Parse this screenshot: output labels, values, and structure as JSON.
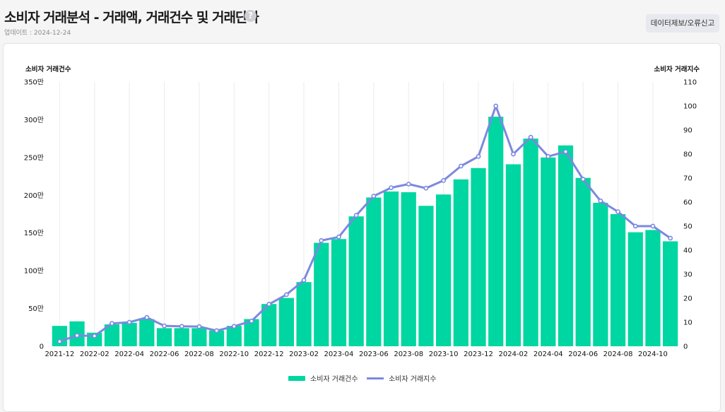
{
  "header": {
    "title": "소비자 거래분석 - 거래액, 거래건수 및 거래단가",
    "help_icon": "question-circle-icon",
    "update_text": "업데이트 : 2024-12-24",
    "report_button_label": "데이터제보/오류신고"
  },
  "colors": {
    "bar": "#00d6a1",
    "line": "#7b89e0",
    "grid": "#ececec"
  },
  "chart_data": {
    "type": "bar",
    "categories": [
      "2021-12",
      "2022-01",
      "2022-02",
      "2022-03",
      "2022-04",
      "2022-05",
      "2022-06",
      "2022-07",
      "2022-08",
      "2022-09",
      "2022-10",
      "2022-11",
      "2022-12",
      "2023-01",
      "2023-02",
      "2023-03",
      "2023-04",
      "2023-05",
      "2023-06",
      "2023-07",
      "2023-08",
      "2023-09",
      "2023-10",
      "2023-11",
      "2023-12",
      "2024-01",
      "2024-02",
      "2024-03",
      "2024-04",
      "2024-05",
      "2024-06",
      "2024-07",
      "2024-08",
      "2024-09",
      "2024-10",
      "2024-11"
    ],
    "x_tick_labels": [
      "2021-12",
      "2022-02",
      "2022-04",
      "2022-06",
      "2022-08",
      "2022-10",
      "2022-12",
      "2023-02",
      "2023-04",
      "2023-06",
      "2023-08",
      "2023-10",
      "2023-12",
      "2024-02",
      "2024-04",
      "2024-06",
      "2024-08",
      "2024-10"
    ],
    "series": [
      {
        "name": "소비자 거래건수",
        "type": "bar",
        "axis": "left",
        "values": [
          27,
          33,
          18,
          29,
          31,
          36,
          24,
          24,
          24,
          21,
          27,
          36,
          56,
          64,
          85,
          137,
          142,
          172,
          197,
          205,
          204,
          186,
          201,
          221,
          236,
          304,
          241,
          275,
          250,
          266,
          223,
          190,
          175,
          151,
          154,
          139
        ]
      },
      {
        "name": "소비자 거래지수",
        "type": "line",
        "axis": "right",
        "values": [
          2,
          4.5,
          4.3,
          9.5,
          10,
          12,
          8.5,
          8.3,
          8.2,
          6.5,
          8.3,
          10.5,
          17.5,
          21.5,
          27.5,
          44,
          45.5,
          54.5,
          62.5,
          66,
          67.5,
          65.8,
          69,
          75,
          79,
          100,
          80,
          87,
          79,
          81,
          69.5,
          60.5,
          56,
          50,
          50,
          45
        ]
      }
    ],
    "left_axis": {
      "title": "소비자 거래건수",
      "unit": "만",
      "range": [
        0,
        350
      ],
      "tick_labels": [
        "0",
        "50만",
        "100만",
        "150만",
        "200만",
        "250만",
        "300만",
        "350만"
      ]
    },
    "right_axis": {
      "title": "소비자 거래지수",
      "range": [
        0,
        110
      ],
      "tick_labels": [
        "0",
        "10",
        "20",
        "30",
        "40",
        "50",
        "60",
        "70",
        "80",
        "90",
        "100",
        "110"
      ]
    },
    "legend_position": "bottom-center",
    "grid": "vertical"
  }
}
